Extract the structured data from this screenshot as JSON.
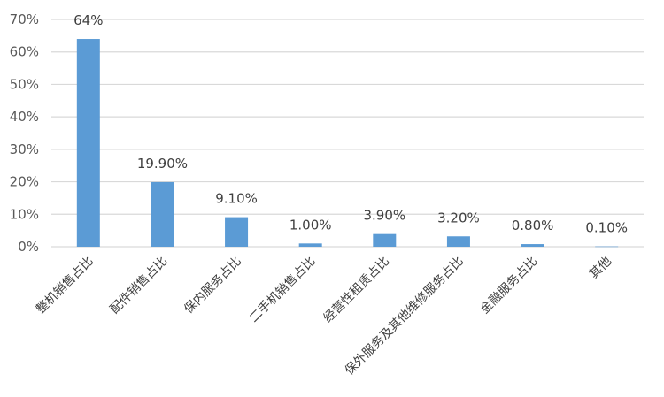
{
  "chart_data": {
    "type": "bar",
    "title": "",
    "xlabel": "",
    "ylabel": "",
    "ylim": [
      0,
      70
    ],
    "yticks": [
      0,
      10,
      20,
      30,
      40,
      50,
      60,
      70
    ],
    "ytick_labels": [
      "0%",
      "10%",
      "20%",
      "30%",
      "40%",
      "50%",
      "60%",
      "70%"
    ],
    "grid": true,
    "legend": "none",
    "categories": [
      "整机销售占比",
      "配件销售占比",
      "保内服务占比",
      "二手机销售占比",
      "经营性租赁占比",
      "保外服务及其他维修服务占比",
      "金融服务占比",
      "其他"
    ],
    "values": [
      64,
      19.9,
      9.1,
      1.0,
      3.9,
      3.2,
      0.8,
      0.1
    ],
    "data_labels": [
      "64%",
      "19.90%",
      "9.10%",
      "1.00%",
      "3.90%",
      "3.20%",
      "0.80%",
      "0.10%"
    ],
    "bar_color": "#5B9BD5",
    "grid_color": "#D9D9D9"
  }
}
